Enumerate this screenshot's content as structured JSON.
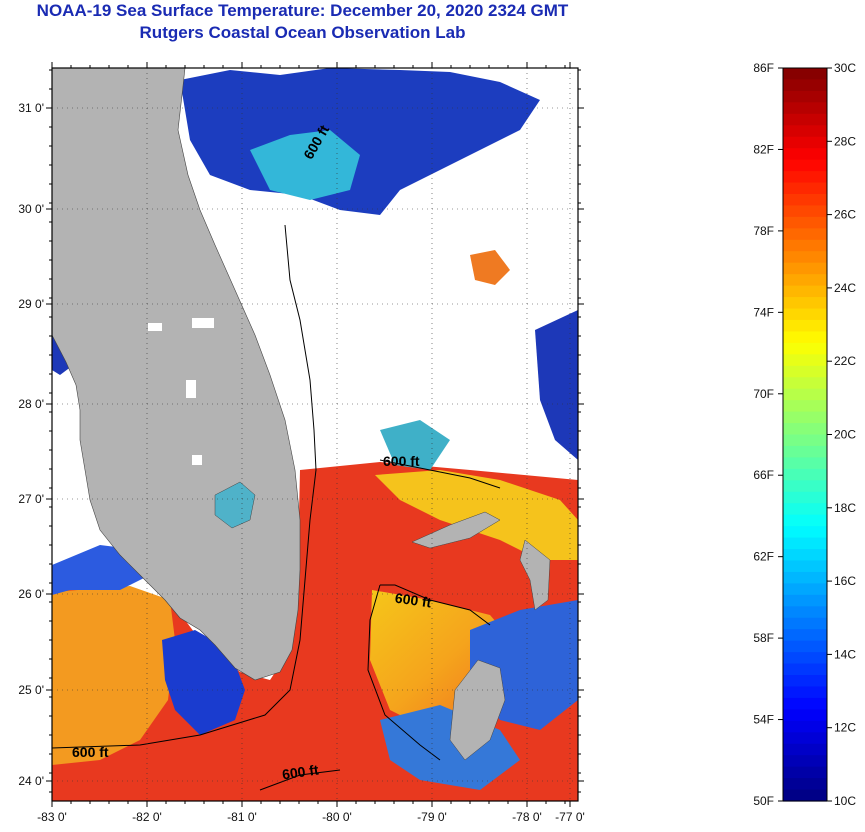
{
  "title": "NOAA-19 Sea Surface Temperature:  December 20, 2020 2324 GMT",
  "subtitle": "Rutgers Coastal Ocean Observation Lab",
  "map": {
    "lon_range": [
      -83,
      -76.8
    ],
    "lat_range": [
      23.8,
      31.4
    ],
    "x_ticks": [
      "-83 0'",
      "-82 0'",
      "-81 0'",
      "-80 0'",
      "-79 0'",
      "-78 0'",
      "-77 0'"
    ],
    "y_ticks": [
      "31 0'",
      "30 0'",
      "29 0'",
      "28 0'",
      "27 0'",
      "26 0'",
      "25 0'",
      "24 0'"
    ],
    "contour_labels": [
      "600 ft",
      "600 ft",
      "600 ft",
      "600 ft",
      "600 ft"
    ],
    "land_color": "#b3b3b3",
    "cloud_color": "#ffffff"
  },
  "colorbar": {
    "f_labels": [
      "86F",
      "82F",
      "78F",
      "74F",
      "70F",
      "66F",
      "62F",
      "58F",
      "54F",
      "50F"
    ],
    "c_labels": [
      "30C",
      "28C",
      "26C",
      "24C",
      "22C",
      "20C",
      "18C",
      "16C",
      "14C",
      "12C",
      "10C"
    ],
    "min_c": 10,
    "max_c": 30
  }
}
